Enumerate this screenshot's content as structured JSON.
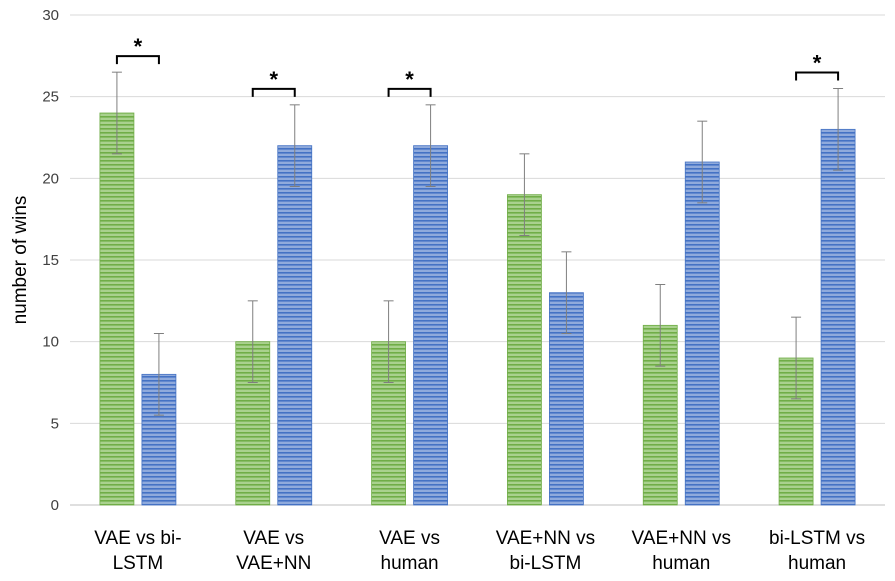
{
  "chart_data": {
    "type": "bar",
    "title": "",
    "xlabel": "",
    "ylabel": "number of wins",
    "ylim": [
      0,
      30
    ],
    "yticks": [
      "0",
      "5",
      "10",
      "15",
      "20",
      "25",
      "30"
    ],
    "grid": true,
    "categories": [
      [
        "VAE vs bi-",
        "LSTM"
      ],
      [
        "VAE vs",
        "VAE+NN"
      ],
      [
        "VAE vs",
        "human"
      ],
      [
        "VAE+NN vs",
        "bi-LSTM"
      ],
      [
        "VAE+NN vs",
        "human"
      ],
      [
        "bi-LSTM vs",
        "human"
      ]
    ],
    "series": [
      {
        "values": [
          24,
          10,
          10,
          19,
          11,
          9
        ],
        "errors": [
          2.5,
          2.5,
          2.5,
          2.5,
          2.5,
          2.5
        ],
        "color": "#70ad47",
        "stripe": "#a9d18e"
      },
      {
        "values": [
          8,
          22,
          22,
          13,
          21,
          23
        ],
        "errors": [
          2.5,
          2.5,
          2.5,
          2.5,
          2.5,
          2.5
        ],
        "color": "#4472c4",
        "stripe": "#8faadc"
      }
    ],
    "significance": [
      {
        "category": 0,
        "label": "*"
      },
      {
        "category": 1,
        "label": "*"
      },
      {
        "category": 2,
        "label": "*"
      },
      {
        "category": 5,
        "label": "*"
      }
    ]
  }
}
